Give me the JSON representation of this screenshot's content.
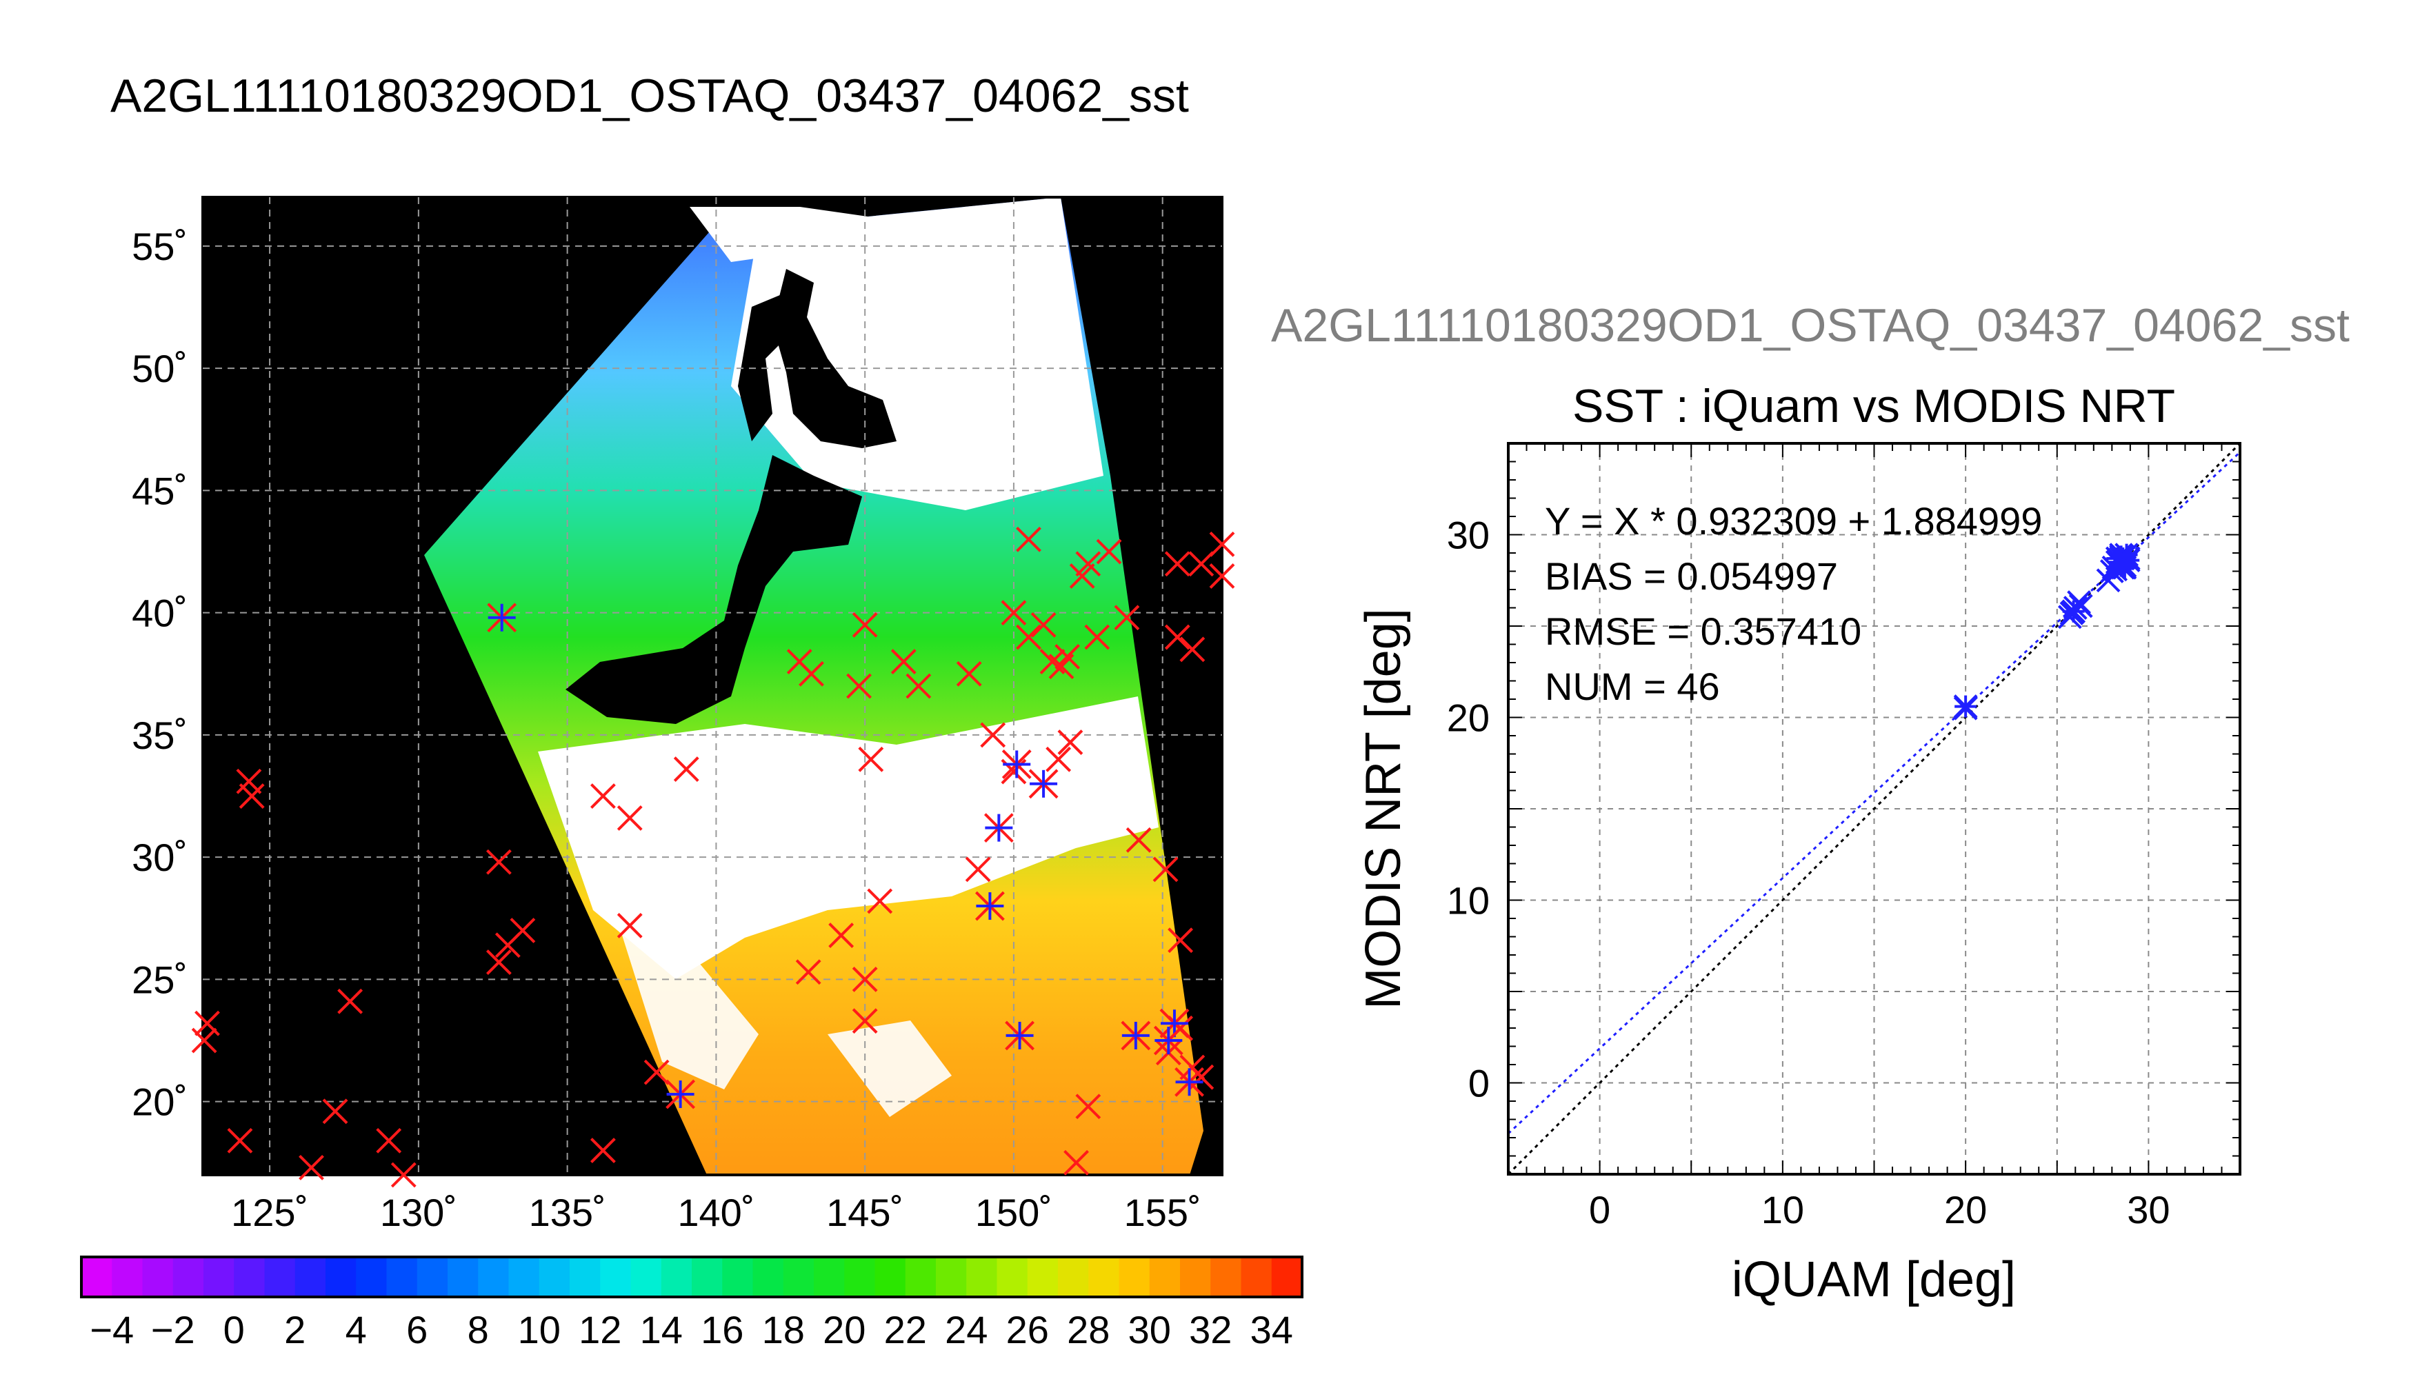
{
  "page_title": "A2GL11110180329OD1_OSTAQ_03437_04062_sst",
  "scatter_file_title": "A2GL11110180329OD1_OSTAQ_03437_04062_sst",
  "colors": {
    "match_red": "#ff1a1a",
    "match_blue": "#2020ff",
    "land": "#000000",
    "cloud": "#ffffff",
    "fit_line": "#1f1fff",
    "one_to_one_line": "#000000"
  },
  "map": {
    "projection": "equirectangular",
    "lon_range": [
      122.75,
      157
    ],
    "lat_range": [
      17,
      57
    ],
    "lon_ticks": [
      125,
      130,
      135,
      140,
      145,
      150,
      155
    ],
    "lon_tick_labels": [
      "125˚",
      "130˚",
      "135˚",
      "140˚",
      "145˚",
      "150˚",
      "155˚"
    ],
    "lat_ticks": [
      55,
      50,
      45,
      40,
      35,
      30,
      25,
      20
    ],
    "lat_tick_labels": [
      "55˚",
      "50˚",
      "45˚",
      "40˚",
      "35˚",
      "30˚",
      "25˚",
      "20˚"
    ],
    "grid": true,
    "buoy_red_x": [
      [
        155.5,
        42
      ],
      [
        156.3,
        42
      ],
      [
        157,
        42.8
      ],
      [
        157,
        41.5
      ],
      [
        152.5,
        42
      ],
      [
        152.3,
        41.5
      ],
      [
        153.2,
        42.5
      ],
      [
        150.5,
        43
      ],
      [
        150,
        40
      ],
      [
        151,
        39.5
      ],
      [
        153.8,
        39.8
      ],
      [
        155.5,
        39
      ],
      [
        152.8,
        39
      ],
      [
        156,
        38.5
      ],
      [
        150.5,
        39
      ],
      [
        151.3,
        38
      ],
      [
        151.8,
        38.2
      ],
      [
        151.6,
        37.8
      ],
      [
        145,
        39.5
      ],
      [
        146.3,
        38
      ],
      [
        148.5,
        37.5
      ],
      [
        146.8,
        37
      ],
      [
        144.8,
        37
      ],
      [
        142.8,
        38
      ],
      [
        143.2,
        37.5
      ],
      [
        149.3,
        35
      ],
      [
        145.2,
        34
      ],
      [
        150,
        33.5
      ],
      [
        151.5,
        34
      ],
      [
        151.9,
        34.7
      ],
      [
        139,
        33.6
      ],
      [
        136.2,
        32.5
      ],
      [
        137.1,
        31.6
      ],
      [
        124.3,
        33.1
      ],
      [
        124.4,
        32.5
      ],
      [
        132.7,
        29.8
      ],
      [
        148.8,
        29.5
      ],
      [
        154.2,
        30.7
      ],
      [
        155.1,
        29.5
      ],
      [
        145.5,
        28.2
      ],
      [
        137.1,
        27.2
      ],
      [
        133.5,
        27
      ],
      [
        133,
        26.4
      ],
      [
        132.7,
        25.7
      ],
      [
        144.2,
        26.8
      ],
      [
        155.6,
        26.6
      ],
      [
        145,
        25
      ],
      [
        143.1,
        25.3
      ],
      [
        127.7,
        24.1
      ],
      [
        145,
        23.3
      ],
      [
        122.9,
        23.2
      ],
      [
        122.8,
        22.5
      ],
      [
        155.2,
        22
      ],
      [
        155.6,
        23
      ],
      [
        156,
        21.4
      ],
      [
        138,
        21.2
      ],
      [
        156.3,
        21
      ],
      [
        127.2,
        19.6
      ],
      [
        152.5,
        19.8
      ],
      [
        124,
        18.4
      ],
      [
        129,
        18.4
      ],
      [
        136.2,
        18
      ],
      [
        126.4,
        17.3
      ],
      [
        129.5,
        17
      ],
      [
        152.1,
        17.5
      ]
    ],
    "buoy_blue_asterisk": [
      [
        132.8,
        39.8
      ],
      [
        151,
        33
      ],
      [
        150.1,
        33.8
      ],
      [
        149.5,
        31.2
      ],
      [
        149.2,
        28
      ],
      [
        150.2,
        22.7
      ],
      [
        154.1,
        22.7
      ],
      [
        155.4,
        23.2
      ],
      [
        155.2,
        22.5
      ],
      [
        155.9,
        20.8
      ],
      [
        138.8,
        20.3
      ]
    ]
  },
  "colorbar": {
    "min": -5,
    "max": 35,
    "tick_labels": [
      "−4",
      "−2",
      "0",
      "2",
      "4",
      "6",
      "8",
      "10",
      "12",
      "14",
      "16",
      "18",
      "20",
      "22",
      "24",
      "26",
      "28",
      "30",
      "32",
      "34"
    ]
  },
  "chart_data": {
    "type": "scatter",
    "title": "SST : iQuam vs MODIS NRT",
    "xlabel": "iQUAM [deg]",
    "ylabel": "MODIS NRT [deg]",
    "xlim": [
      -5,
      35
    ],
    "ylim": [
      -5,
      35
    ],
    "x_ticks": [
      0,
      10,
      20,
      30
    ],
    "y_ticks": [
      0,
      10,
      20,
      30
    ],
    "grid": true,
    "annotations": [
      "Y = X * 0.932309 + 1.884999",
      "BIAS = 0.054997",
      "RMSE = 0.357410",
      "NUM = 46"
    ],
    "fit": {
      "slope": 0.932309,
      "intercept": 1.884999
    },
    "series": [
      {
        "marker": "x",
        "x": [
          20,
          25.8,
          26,
          26.2,
          25.7,
          26.3,
          27.8,
          28,
          28.1,
          28.3,
          28.5,
          28.6,
          28.7,
          28.4,
          28.2,
          28.9,
          28.5,
          28.6
        ],
        "y": [
          20.5,
          25.7,
          26,
          26.3,
          25.5,
          26.1,
          27.5,
          28,
          28.2,
          28.5,
          28.7,
          28.8,
          28.3,
          28.4,
          28.1,
          28.7,
          28.9,
          28.2
        ]
      },
      {
        "marker": "asterisk",
        "x": [
          20,
          25.9,
          28.4,
          28.6,
          28.8,
          28.5,
          28.7,
          28.9,
          28.3,
          28.6,
          28.5
        ],
        "y": [
          20.6,
          25.8,
          28.5,
          28.7,
          28.9,
          28.3,
          28.2,
          28.6,
          28.7,
          28.4,
          28.8
        ]
      }
    ]
  }
}
